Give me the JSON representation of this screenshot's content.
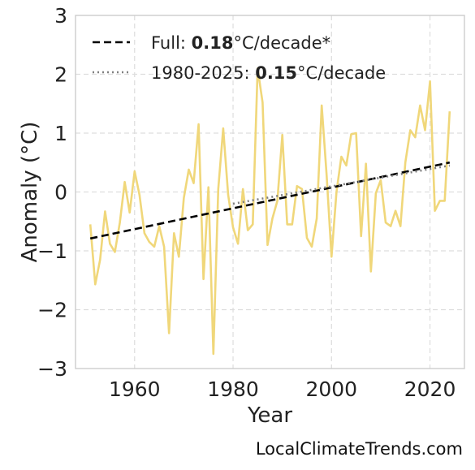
{
  "chart_data": {
    "type": "line",
    "xlabel": "Year",
    "ylabel": "Anomaly (°C)",
    "xlim": [
      1948,
      2027
    ],
    "ylim": [
      -3,
      3
    ],
    "x_ticks": [
      1960,
      1980,
      2000,
      2020
    ],
    "y_ticks": [
      -3,
      -2,
      -1,
      0,
      1,
      2,
      3
    ],
    "x_tick_labels": [
      "1960",
      "1980",
      "2000",
      "2020"
    ],
    "y_tick_labels": [
      "−3",
      "−2",
      "−1",
      "0",
      "1",
      "2",
      "3"
    ],
    "grid": true,
    "legend_position": "top-left",
    "series": [
      {
        "color": "#f0d77a",
        "style": "solid",
        "x": [
          1951,
          1952,
          1953,
          1954,
          1955,
          1956,
          1957,
          1958,
          1959,
          1960,
          1961,
          1962,
          1963,
          1964,
          1965,
          1966,
          1967,
          1968,
          1969,
          1970,
          1971,
          1972,
          1973,
          1974,
          1975,
          1976,
          1977,
          1978,
          1979,
          1980,
          1981,
          1982,
          1983,
          1984,
          1985,
          1986,
          1987,
          1988,
          1989,
          1990,
          1991,
          1992,
          1993,
          1994,
          1995,
          1996,
          1997,
          1998,
          1999,
          2000,
          2001,
          2002,
          2003,
          2004,
          2005,
          2006,
          2007,
          2008,
          2009,
          2010,
          2011,
          2012,
          2013,
          2014,
          2015,
          2016,
          2017,
          2018,
          2019,
          2020,
          2021,
          2022,
          2023,
          2024
        ],
        "values": [
          -0.55,
          -1.57,
          -1.15,
          -0.33,
          -0.88,
          -1.02,
          -0.52,
          0.17,
          -0.35,
          0.35,
          -0.05,
          -0.7,
          -0.85,
          -0.93,
          -0.58,
          -0.93,
          -2.4,
          -0.7,
          -1.1,
          -0.1,
          0.38,
          0.15,
          1.15,
          -1.48,
          0.08,
          -2.75,
          0.05,
          1.08,
          -0.05,
          -0.6,
          -0.88,
          0.05,
          -0.65,
          -0.55,
          2.1,
          1.52,
          -0.9,
          -0.45,
          -0.15,
          0.97,
          -0.55,
          -0.55,
          0.1,
          0.05,
          -0.78,
          -0.93,
          -0.45,
          1.47,
          0.3,
          -1.1,
          0.0,
          0.6,
          0.45,
          0.98,
          1.0,
          -0.75,
          0.48,
          -1.35,
          -0.02,
          0.2,
          -0.52,
          -0.58,
          -0.32,
          -0.58,
          0.5,
          1.05,
          0.93,
          1.47,
          1.05,
          1.88,
          -0.32,
          -0.15,
          -0.15,
          1.37
        ]
      },
      {
        "name": "Full: 0.18°C/decade*",
        "name_prefix": "Full: ",
        "name_value": "0.18",
        "name_suffix": "°C/decade*",
        "color": "#000000",
        "style": "dashed",
        "x": [
          1951,
          2024
        ],
        "values": [
          -0.79,
          0.5
        ]
      },
      {
        "name": "1980-2025: 0.15°C/decade",
        "name_prefix": "1980-2025: ",
        "name_value": "0.15",
        "name_suffix": "°C/decade",
        "color": "#808080",
        "style": "dotted",
        "x": [
          1980,
          2024
        ],
        "values": [
          -0.2,
          0.45
        ]
      }
    ]
  },
  "credit": "LocalClimateTrends.com"
}
